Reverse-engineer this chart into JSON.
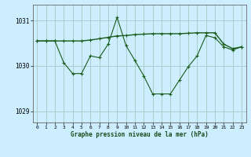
{
  "xlabel": "Graphe pression niveau de la mer (hPa)",
  "background_color": "#cceeff",
  "grid_color": "#aacccc",
  "line_color": "#1a5c1a",
  "x_ticks": [
    0,
    1,
    2,
    3,
    4,
    5,
    6,
    7,
    8,
    9,
    10,
    11,
    12,
    13,
    14,
    15,
    16,
    17,
    18,
    19,
    20,
    21,
    22,
    23
  ],
  "ylim": [
    1028.75,
    1031.35
  ],
  "yticks": [
    1029,
    1030,
    1031
  ],
  "line1_x": [
    0,
    1,
    2,
    3,
    4,
    5,
    6,
    7,
    8,
    9,
    10,
    11,
    12,
    13,
    14,
    15,
    16,
    17,
    18,
    19,
    20,
    21,
    22,
    23
  ],
  "line1_y": [
    1030.55,
    1030.55,
    1030.55,
    1030.07,
    1029.83,
    1029.83,
    1030.22,
    1030.18,
    1030.48,
    1031.07,
    1030.45,
    1030.12,
    1029.78,
    1029.38,
    1029.38,
    1029.38,
    1029.68,
    1029.98,
    1030.22,
    1030.67,
    1030.62,
    1030.42,
    1030.35,
    1030.42
  ],
  "line2_x": [
    0,
    1,
    2,
    3,
    4,
    5,
    6,
    7,
    8,
    9,
    10,
    11,
    12,
    13,
    14,
    15,
    16,
    17,
    18,
    19,
    20,
    21,
    22,
    23
  ],
  "line2_y": [
    1030.55,
    1030.55,
    1030.55,
    1030.55,
    1030.55,
    1030.55,
    1030.57,
    1030.6,
    1030.63,
    1030.66,
    1030.67,
    1030.69,
    1030.7,
    1030.71,
    1030.71,
    1030.71,
    1030.71,
    1030.72,
    1030.73,
    1030.73,
    1030.73,
    1030.48,
    1030.38,
    1030.42
  ]
}
